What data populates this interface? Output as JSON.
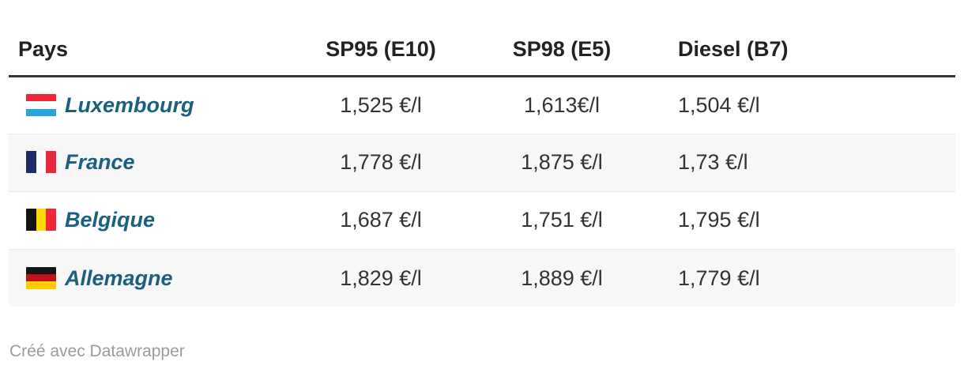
{
  "chart_data": {
    "type": "table",
    "title": "",
    "columns": [
      "Pays",
      "SP95 (E10)",
      "SP98 (E5)",
      "Diesel (B7)"
    ],
    "rows": [
      [
        "Luxembourg",
        "1,525 €/l",
        "1,613€/l",
        "1,504 €/l"
      ],
      [
        "France",
        "1,778 €/l",
        "1,875 €/l",
        "1,73 €/l"
      ],
      [
        "Belgique",
        "1,687 €/l",
        "1,751 €/l",
        "1,795 €/l"
      ],
      [
        "Allemagne",
        "1,829 €/l",
        "1,889 €/l",
        "1,779 €/l"
      ]
    ],
    "unit": "€/l",
    "values_numeric": {
      "Luxembourg": [
        1.525,
        1.613,
        1.504
      ],
      "France": [
        1.778,
        1.875,
        1.73
      ],
      "Belgique": [
        1.687,
        1.751,
        1.795
      ],
      "Allemagne": [
        1.829,
        1.889,
        1.779
      ]
    },
    "layout_hints": {
      "striped_rows": true,
      "header_rule": "thick-dark",
      "country_style": "bold-italic-teal-with-flag"
    }
  },
  "footer": {
    "credit": "Créé avec Datawrapper"
  },
  "colors": {
    "accent": "#1b607f",
    "header-border": "#333333",
    "header-text": "#222222",
    "text": "#333333",
    "row-alt": "#f7f7f7",
    "separator": "#e9e9e9",
    "credit": "#9b9b9b",
    "bg": "#ffffff"
  },
  "flags": {
    "luxembourg": {
      "direction": "horizontal",
      "stripes": [
        "#ED2939",
        "#FFFFFF",
        "#27A3DD"
      ]
    },
    "france": {
      "direction": "vertical",
      "stripes": [
        "#1E2A69",
        "#FFFFFF",
        "#E8293C"
      ]
    },
    "belgique": {
      "direction": "vertical",
      "stripes": [
        "#141414",
        "#FFD90C",
        "#ED2939"
      ]
    },
    "allemagne": {
      "direction": "horizontal",
      "stripes": [
        "#141414",
        "#C1121C",
        "#FFCC00"
      ]
    }
  }
}
